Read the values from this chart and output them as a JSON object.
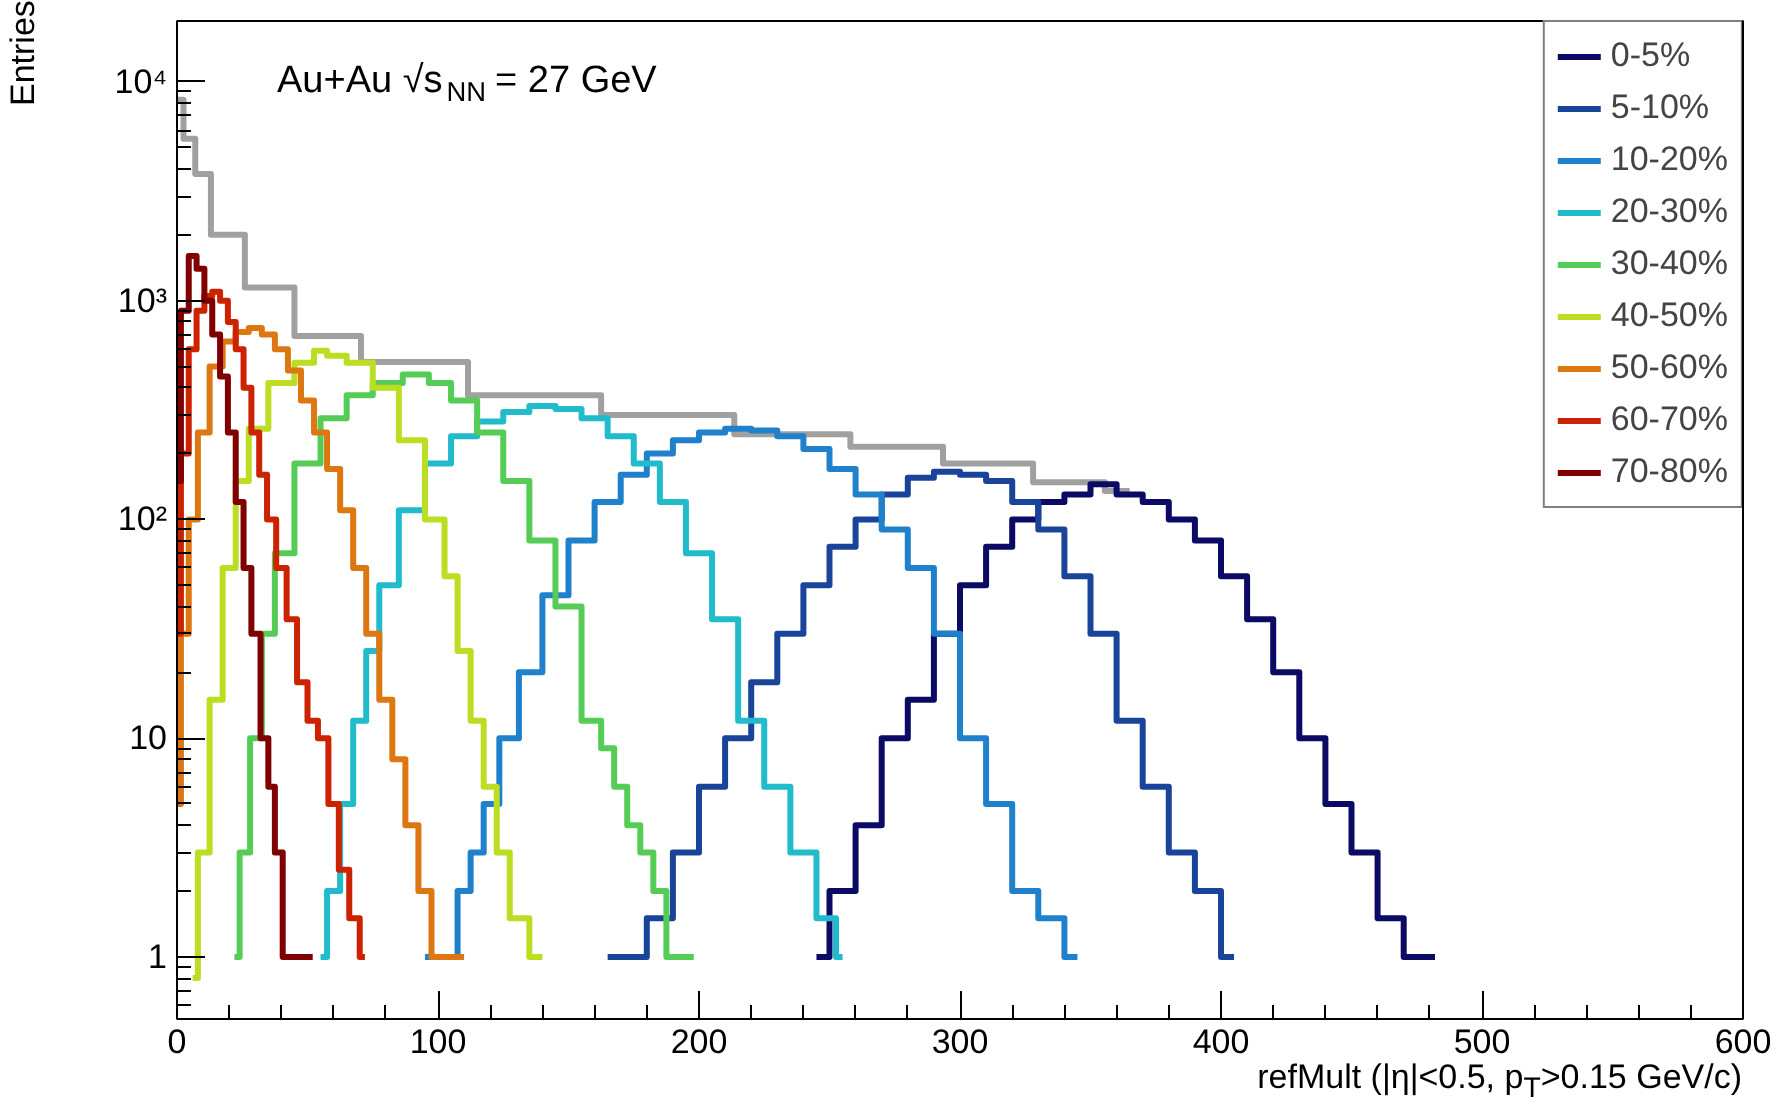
{
  "chart_data": {
    "type": "step",
    "xlabel": "refMult (|η|<0.5, p$_{T}$>0.15 GeV/c)",
    "ylabel": "Entries",
    "annotations": [
      "Au+Au √s$_{NN}$ = 27 GeV"
    ],
    "log": "y",
    "xlim": [
      0,
      600
    ],
    "ylim": [
      0.52,
      19000
    ],
    "xticks": [
      0,
      100,
      200,
      300,
      400,
      500,
      600
    ],
    "yticks": [
      1,
      10,
      {
        "value": 100,
        "label": "10²"
      },
      {
        "value": 1000,
        "label": "10³"
      },
      {
        "value": 10000,
        "label": "10⁴"
      }
    ],
    "grid": false,
    "legend": "top right",
    "line_style": "solid",
    "marker": "none",
    "series": [
      {
        "color": "#a0a0a0",
        "x": [
          0,
          5,
          9,
          17,
          35,
          55,
          86,
          137,
          188,
          239,
          277,
          310,
          346,
          365
        ],
        "values": [
          8300,
          5500,
          3800,
          2000,
          1150,
          690,
          525,
          370,
          300,
          245,
          215,
          180,
          148,
          135
        ]
      },
      {
        "name": "0-5%",
        "color": "#0b0b66",
        "x": [
          245,
          255,
          265,
          275,
          285,
          295,
          305,
          315,
          325,
          335,
          345,
          355,
          365,
          375,
          385,
          395,
          405,
          415,
          425,
          435,
          445,
          455,
          465,
          475,
          482
        ],
        "values": [
          1,
          2,
          4,
          10,
          15,
          30,
          50,
          75,
          100,
          120,
          130,
          145,
          130,
          120,
          100,
          80,
          55,
          35,
          20,
          10,
          5,
          3,
          1.5,
          1,
          1
        ]
      },
      {
        "name": "5-10%",
        "color": "#1a4499",
        "x": [
          165,
          175,
          185,
          195,
          205,
          215,
          225,
          235,
          245,
          255,
          265,
          275,
          285,
          295,
          305,
          315,
          325,
          335,
          345,
          355,
          365,
          375,
          385,
          395,
          405
        ],
        "values": [
          1,
          1,
          1.5,
          3,
          6,
          10,
          18,
          30,
          50,
          75,
          100,
          130,
          155,
          165,
          160,
          150,
          120,
          90,
          55,
          30,
          12,
          6,
          3,
          2,
          1
        ]
      },
      {
        "name": "10-20%",
        "color": "#1f80cc",
        "x": [
          95,
          105,
          110,
          115,
          120,
          127,
          135,
          145,
          155,
          165,
          175,
          185,
          195,
          205,
          215,
          225,
          235,
          245,
          255,
          265,
          275,
          285,
          295,
          305,
          315,
          325,
          335,
          345
        ],
        "values": [
          1,
          1,
          2,
          3,
          5,
          10,
          20,
          45,
          80,
          120,
          160,
          200,
          230,
          250,
          260,
          255,
          240,
          210,
          170,
          130,
          90,
          60,
          30,
          10,
          5,
          2,
          1.5,
          1
        ]
      },
      {
        "name": "20-30%",
        "color": "#22bbcc",
        "x": [
          55,
          60,
          65,
          70,
          75,
          80,
          90,
          100,
          110,
          120,
          130,
          140,
          150,
          160,
          170,
          180,
          190,
          200,
          210,
          220,
          230,
          240,
          250,
          255
        ],
        "values": [
          1,
          2,
          5,
          12,
          25,
          50,
          110,
          180,
          240,
          280,
          310,
          330,
          320,
          290,
          240,
          180,
          120,
          70,
          35,
          12,
          6,
          3,
          1.5,
          1
        ]
      },
      {
        "name": "30-40%",
        "color": "#55cc55",
        "x": [
          22,
          26,
          30,
          35,
          40,
          50,
          60,
          70,
          80,
          93,
          100,
          110,
          120,
          130,
          140,
          150,
          160,
          165,
          170,
          175,
          180,
          185,
          190,
          198
        ],
        "values": [
          1,
          3,
          10,
          30,
          70,
          180,
          290,
          370,
          420,
          460,
          420,
          350,
          250,
          150,
          80,
          40,
          12,
          9,
          6,
          4,
          3,
          2,
          1,
          1
        ]
      },
      {
        "name": "40-50%",
        "color": "#bbdd22",
        "x": [
          6,
          10,
          15,
          20,
          25,
          30,
          40,
          50,
          55,
          60,
          70,
          80,
          90,
          100,
          105,
          110,
          115,
          120,
          125,
          130,
          140
        ],
        "values": [
          0.8,
          3,
          15,
          60,
          150,
          260,
          420,
          520,
          590,
          560,
          520,
          400,
          230,
          100,
          55,
          25,
          12,
          6,
          3,
          1.5,
          1
        ]
      },
      {
        "name": "50-60%",
        "color": "#dd7711",
        "x": [
          0,
          3,
          6,
          10,
          15,
          20,
          25,
          30,
          35,
          40,
          45,
          50,
          55,
          60,
          65,
          70,
          75,
          80,
          85,
          90,
          95,
          100,
          110
        ],
        "values": [
          5,
          30,
          100,
          250,
          500,
          650,
          720,
          750,
          700,
          600,
          480,
          350,
          250,
          170,
          110,
          60,
          30,
          15,
          8,
          4,
          2,
          1,
          1
        ]
      },
      {
        "name": "60-70%",
        "color": "#cc2200",
        "x": [
          0,
          3,
          6,
          9,
          12,
          15,
          18,
          21,
          24,
          27,
          30,
          33,
          36,
          40,
          44,
          48,
          52,
          56,
          60,
          64,
          68,
          72
        ],
        "values": [
          30,
          200,
          600,
          900,
          1050,
          1100,
          1000,
          800,
          600,
          400,
          250,
          160,
          100,
          60,
          35,
          18,
          12,
          10,
          5,
          2.5,
          1.5,
          1
        ]
      },
      {
        "name": "70-80%",
        "color": "#800000",
        "x": [
          0,
          3,
          6,
          9,
          12,
          15,
          18,
          21,
          24,
          27,
          30,
          34,
          36,
          39,
          42,
          45,
          48,
          52
        ],
        "values": [
          150,
          900,
          1600,
          1400,
          1000,
          700,
          450,
          250,
          120,
          60,
          30,
          10,
          6,
          3,
          1,
          1,
          1,
          1
        ]
      }
    ]
  }
}
